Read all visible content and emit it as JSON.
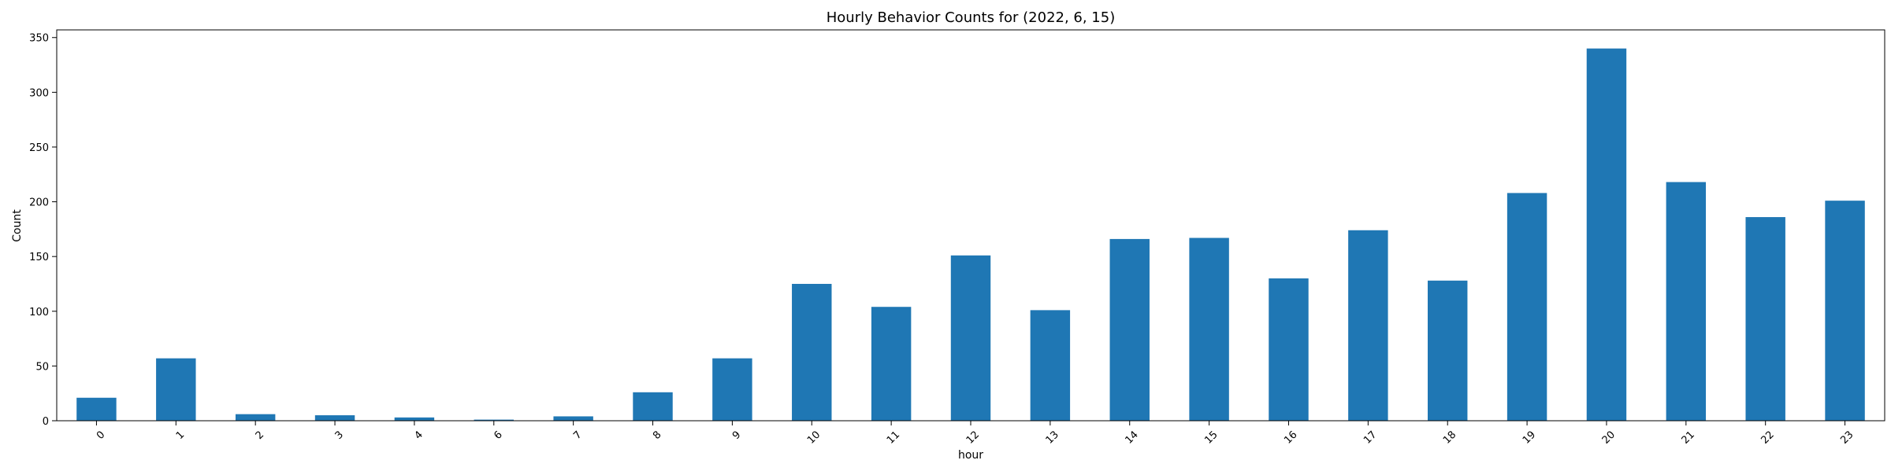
{
  "chart_data": {
    "type": "bar",
    "title": "Hourly Behavior Counts for (2022, 6, 15)",
    "xlabel": "hour",
    "ylabel": "Count",
    "ylim": [
      0,
      357
    ],
    "yticks": [
      0,
      50,
      100,
      150,
      200,
      250,
      300,
      350
    ],
    "grid": false,
    "legend": "none",
    "bar_color": "#1f77b4",
    "categories": [
      "0",
      "1",
      "2",
      "3",
      "4",
      "6",
      "7",
      "8",
      "9",
      "10",
      "11",
      "12",
      "13",
      "14",
      "15",
      "16",
      "17",
      "18",
      "19",
      "20",
      "21",
      "22",
      "23"
    ],
    "values": [
      21,
      57,
      6,
      5,
      3,
      1,
      4,
      26,
      57,
      125,
      104,
      151,
      101,
      166,
      167,
      130,
      174,
      128,
      208,
      340,
      218,
      186,
      201
    ]
  }
}
